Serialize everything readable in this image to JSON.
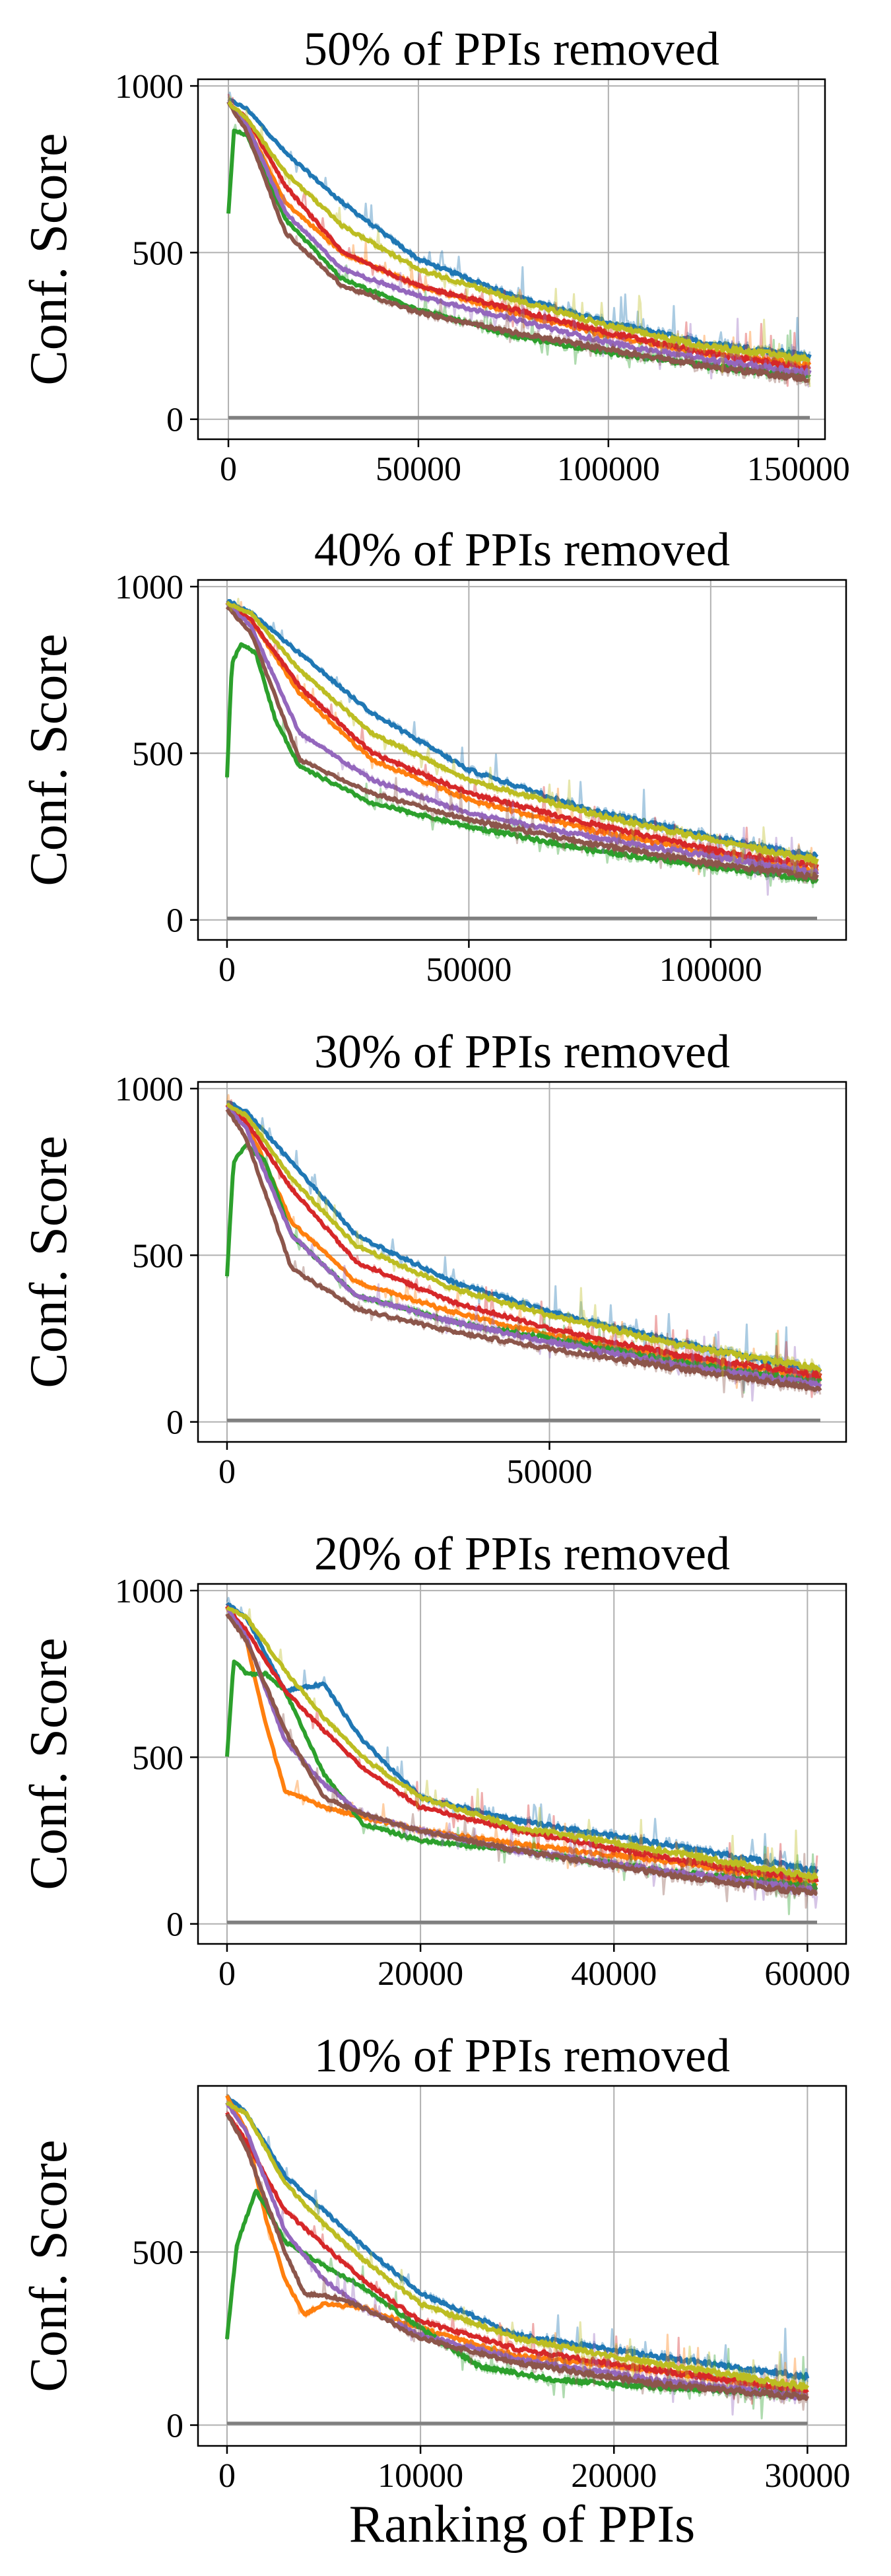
{
  "figure": {
    "xlabel": "Ranking of PPIs"
  },
  "chart_data": [
    {
      "type": "line",
      "title": "50% of PPIs removed",
      "ylabel": "Conf. Score",
      "xlabel": "",
      "xlim": [
        -8000,
        157000
      ],
      "ylim": [
        -60,
        1020
      ],
      "xticks": [
        0,
        50000,
        100000,
        150000
      ],
      "yticks": [
        0,
        500,
        1000
      ],
      "grid": true,
      "series": [
        {
          "color": "#1f77b4",
          "x": [
            0,
            5000,
            15000,
            30000,
            50000,
            75000,
            100000,
            125000,
            153000
          ],
          "y": [
            960,
            930,
            800,
            650,
            480,
            370,
            290,
            230,
            190
          ]
        },
        {
          "color": "#ff7f0e",
          "x": [
            0,
            5000,
            15000,
            30000,
            50000,
            75000,
            100000,
            125000,
            153000
          ],
          "y": [
            950,
            880,
            650,
            500,
            400,
            320,
            250,
            200,
            160
          ]
        },
        {
          "color": "#2ca02c",
          "x": [
            0,
            1500,
            5000,
            15000,
            30000,
            50000,
            75000,
            100000,
            125000,
            153000
          ],
          "y": [
            620,
            870,
            850,
            600,
            420,
            330,
            250,
            200,
            160,
            130
          ]
        },
        {
          "color": "#d62728",
          "x": [
            0,
            5000,
            15000,
            30000,
            50000,
            75000,
            100000,
            125000,
            153000
          ],
          "y": [
            950,
            900,
            700,
            500,
            400,
            330,
            260,
            200,
            150
          ]
        },
        {
          "color": "#9467bd",
          "x": [
            0,
            5000,
            15000,
            30000,
            50000,
            75000,
            100000,
            125000,
            153000
          ],
          "y": [
            950,
            880,
            620,
            450,
            370,
            300,
            230,
            180,
            140
          ]
        },
        {
          "color": "#8c564b",
          "x": [
            0,
            5000,
            15000,
            30000,
            50000,
            75000,
            100000,
            125000,
            153000
          ],
          "y": [
            950,
            860,
            560,
            400,
            320,
            260,
            210,
            160,
            120
          ]
        },
        {
          "color": "#bcbd22",
          "x": [
            0,
            5000,
            15000,
            30000,
            50000,
            75000,
            100000,
            125000,
            153000
          ],
          "y": [
            950,
            900,
            740,
            580,
            450,
            360,
            280,
            220,
            180
          ]
        },
        {
          "color": "#7f7f7f",
          "x": [
            0,
            153000
          ],
          "y": [
            5,
            5
          ]
        }
      ]
    },
    {
      "type": "line",
      "title": "40% of PPIs removed",
      "ylabel": "Conf. Score",
      "xlabel": "",
      "xlim": [
        -6000,
        128000
      ],
      "ylim": [
        -60,
        1020
      ],
      "xticks": [
        0,
        50000,
        100000
      ],
      "yticks": [
        0,
        500,
        1000
      ],
      "grid": true,
      "series": [
        {
          "color": "#1f77b4",
          "x": [
            0,
            5000,
            15000,
            30000,
            50000,
            75000,
            100000,
            122000
          ],
          "y": [
            960,
            920,
            800,
            620,
            450,
            330,
            250,
            190
          ]
        },
        {
          "color": "#ff7f0e",
          "x": [
            0,
            5000,
            15000,
            30000,
            50000,
            75000,
            100000,
            122000
          ],
          "y": [
            950,
            900,
            680,
            480,
            360,
            270,
            200,
            150
          ]
        },
        {
          "color": "#2ca02c",
          "x": [
            0,
            1000,
            3000,
            6000,
            10000,
            15000,
            30000,
            50000,
            75000,
            100000,
            122000
          ],
          "y": [
            430,
            770,
            830,
            800,
            600,
            460,
            350,
            280,
            210,
            160,
            120
          ]
        },
        {
          "color": "#d62728",
          "x": [
            0,
            5000,
            15000,
            30000,
            50000,
            75000,
            100000,
            122000
          ],
          "y": [
            950,
            900,
            700,
            500,
            380,
            290,
            210,
            160
          ]
        },
        {
          "color": "#9467bd",
          "x": [
            0,
            5000,
            15000,
            30000,
            50000,
            75000,
            100000,
            122000
          ],
          "y": [
            950,
            880,
            560,
            420,
            320,
            250,
            190,
            140
          ]
        },
        {
          "color": "#8c564b",
          "x": [
            0,
            5000,
            15000,
            30000,
            50000,
            75000,
            100000,
            122000
          ],
          "y": [
            940,
            860,
            480,
            380,
            300,
            230,
            170,
            130
          ]
        },
        {
          "color": "#bcbd22",
          "x": [
            0,
            5000,
            15000,
            30000,
            50000,
            75000,
            100000,
            122000
          ],
          "y": [
            950,
            920,
            750,
            560,
            420,
            320,
            240,
            180
          ]
        },
        {
          "color": "#7f7f7f",
          "x": [
            0,
            122000
          ],
          "y": [
            5,
            5
          ]
        }
      ]
    },
    {
      "type": "line",
      "title": "30% of PPIs removed",
      "ylabel": "Conf. Score",
      "xlabel": "",
      "xlim": [
        -4500,
        96000
      ],
      "ylim": [
        -60,
        1020
      ],
      "xticks": [
        0,
        50000
      ],
      "yticks": [
        0,
        500,
        1000
      ],
      "grid": true,
      "series": [
        {
          "color": "#1f77b4",
          "x": [
            0,
            3000,
            10000,
            20000,
            35000,
            50000,
            70000,
            92000
          ],
          "y": [
            960,
            930,
            780,
            560,
            420,
            330,
            240,
            150
          ]
        },
        {
          "color": "#ff7f0e",
          "x": [
            0,
            3000,
            10000,
            20000,
            35000,
            50000,
            70000,
            92000
          ],
          "y": [
            950,
            900,
            600,
            420,
            330,
            260,
            190,
            130
          ]
        },
        {
          "color": "#2ca02c",
          "x": [
            0,
            1000,
            3000,
            6000,
            10000,
            20000,
            35000,
            50000,
            70000,
            92000
          ],
          "y": [
            440,
            780,
            830,
            780,
            560,
            380,
            300,
            250,
            180,
            120
          ]
        },
        {
          "color": "#d62728",
          "x": [
            0,
            3000,
            10000,
            20000,
            35000,
            50000,
            70000,
            92000
          ],
          "y": [
            950,
            900,
            700,
            480,
            360,
            280,
            200,
            140
          ]
        },
        {
          "color": "#9467bd",
          "x": [
            0,
            3000,
            10000,
            20000,
            35000,
            50000,
            70000,
            92000
          ],
          "y": [
            950,
            880,
            560,
            380,
            300,
            240,
            170,
            110
          ]
        },
        {
          "color": "#8c564b",
          "x": [
            0,
            3000,
            10000,
            20000,
            35000,
            50000,
            70000,
            92000
          ],
          "y": [
            940,
            850,
            460,
            340,
            270,
            220,
            160,
            100
          ]
        },
        {
          "color": "#bcbd22",
          "x": [
            0,
            3000,
            10000,
            20000,
            35000,
            50000,
            70000,
            92000
          ],
          "y": [
            950,
            920,
            730,
            530,
            400,
            320,
            230,
            160
          ]
        },
        {
          "color": "#7f7f7f",
          "x": [
            0,
            92000
          ],
          "y": [
            5,
            5
          ]
        }
      ]
    },
    {
      "type": "line",
      "title": "20% of PPIs removed",
      "ylabel": "Conf. Score",
      "xlabel": "",
      "xlim": [
        -3000,
        64000
      ],
      "ylim": [
        -60,
        1020
      ],
      "xticks": [
        0,
        20000,
        40000,
        60000
      ],
      "yticks": [
        0,
        500,
        1000
      ],
      "grid": true,
      "series": [
        {
          "color": "#1f77b4",
          "x": [
            0,
            2000,
            6000,
            10000,
            14000,
            20000,
            30000,
            45000,
            61000
          ],
          "y": [
            960,
            920,
            700,
            720,
            550,
            380,
            310,
            240,
            160
          ]
        },
        {
          "color": "#ff7f0e",
          "x": [
            0,
            2000,
            4000,
            6000,
            10000,
            14000,
            20000,
            30000,
            45000,
            61000
          ],
          "y": [
            950,
            850,
            600,
            400,
            350,
            320,
            280,
            240,
            190,
            120
          ]
        },
        {
          "color": "#2ca02c",
          "x": [
            0,
            700,
            2000,
            4000,
            6000,
            10000,
            14000,
            20000,
            30000,
            45000,
            61000
          ],
          "y": [
            500,
            790,
            750,
            750,
            700,
            450,
            300,
            250,
            220,
            160,
            110
          ]
        },
        {
          "color": "#d62728",
          "x": [
            0,
            2000,
            6000,
            10000,
            14000,
            20000,
            30000,
            45000,
            61000
          ],
          "y": [
            950,
            880,
            700,
            580,
            470,
            350,
            280,
            200,
            130
          ]
        },
        {
          "color": "#9467bd",
          "x": [
            0,
            2000,
            6000,
            10000,
            14000,
            20000,
            30000,
            45000,
            61000
          ],
          "y": [
            950,
            860,
            550,
            420,
            330,
            280,
            220,
            160,
            100
          ]
        },
        {
          "color": "#8c564b",
          "x": [
            0,
            2000,
            6000,
            10000,
            14000,
            20000,
            30000,
            45000,
            61000
          ],
          "y": [
            930,
            850,
            580,
            380,
            330,
            280,
            220,
            150,
            90
          ]
        },
        {
          "color": "#bcbd22",
          "x": [
            0,
            2000,
            6000,
            10000,
            14000,
            20000,
            30000,
            45000,
            61000
          ],
          "y": [
            950,
            920,
            760,
            620,
            500,
            380,
            290,
            220,
            140
          ]
        },
        {
          "color": "#7f7f7f",
          "x": [
            0,
            61000
          ],
          "y": [
            5,
            5
          ]
        }
      ]
    },
    {
      "type": "line",
      "title": "10% of PPIs removed",
      "ylabel": "Conf. Score",
      "xlabel": "Ranking of PPIs",
      "xlim": [
        -1500,
        32000
      ],
      "ylim": [
        -60,
        980
      ],
      "xticks": [
        0,
        10000,
        20000,
        30000
      ],
      "yticks": [
        0,
        500
      ],
      "grid": true,
      "series": [
        {
          "color": "#1f77b4",
          "x": [
            0,
            1000,
            3000,
            5000,
            7000,
            10000,
            15000,
            22000,
            30000
          ],
          "y": [
            950,
            900,
            720,
            620,
            520,
            380,
            260,
            200,
            140
          ]
        },
        {
          "color": "#ff7f0e",
          "x": [
            0,
            1000,
            2000,
            3000,
            4000,
            5000,
            7000,
            10000,
            15000,
            22000,
            30000
          ],
          "y": [
            950,
            850,
            600,
            420,
            320,
            350,
            340,
            280,
            200,
            160,
            100
          ]
        },
        {
          "color": "#2ca02c",
          "x": [
            0,
            500,
            1500,
            3000,
            5000,
            7000,
            10000,
            13000,
            17000,
            22000,
            30000
          ],
          "y": [
            250,
            520,
            680,
            530,
            460,
            400,
            280,
            170,
            130,
            110,
            90
          ]
        },
        {
          "color": "#d62728",
          "x": [
            0,
            1000,
            3000,
            5000,
            7000,
            10000,
            15000,
            22000,
            30000
          ],
          "y": [
            900,
            820,
            620,
            520,
            420,
            300,
            220,
            160,
            100
          ]
        },
        {
          "color": "#9467bd",
          "x": [
            0,
            1000,
            3000,
            5000,
            7000,
            10000,
            15000,
            22000,
            30000
          ],
          "y": [
            930,
            850,
            560,
            420,
            340,
            260,
            190,
            130,
            80
          ]
        },
        {
          "color": "#8c564b",
          "x": [
            0,
            1000,
            3000,
            4000,
            5500,
            7000,
            10000,
            15000,
            22000,
            30000
          ],
          "y": [
            900,
            800,
            500,
            380,
            370,
            340,
            250,
            180,
            120,
            80
          ]
        },
        {
          "color": "#bcbd22",
          "x": [
            0,
            1000,
            3000,
            5000,
            7000,
            10000,
            15000,
            22000,
            30000
          ],
          "y": [
            930,
            900,
            700,
            580,
            480,
            350,
            250,
            180,
            110
          ]
        },
        {
          "color": "#7f7f7f",
          "x": [
            0,
            30000
          ],
          "y": [
            5,
            5
          ]
        }
      ]
    }
  ]
}
